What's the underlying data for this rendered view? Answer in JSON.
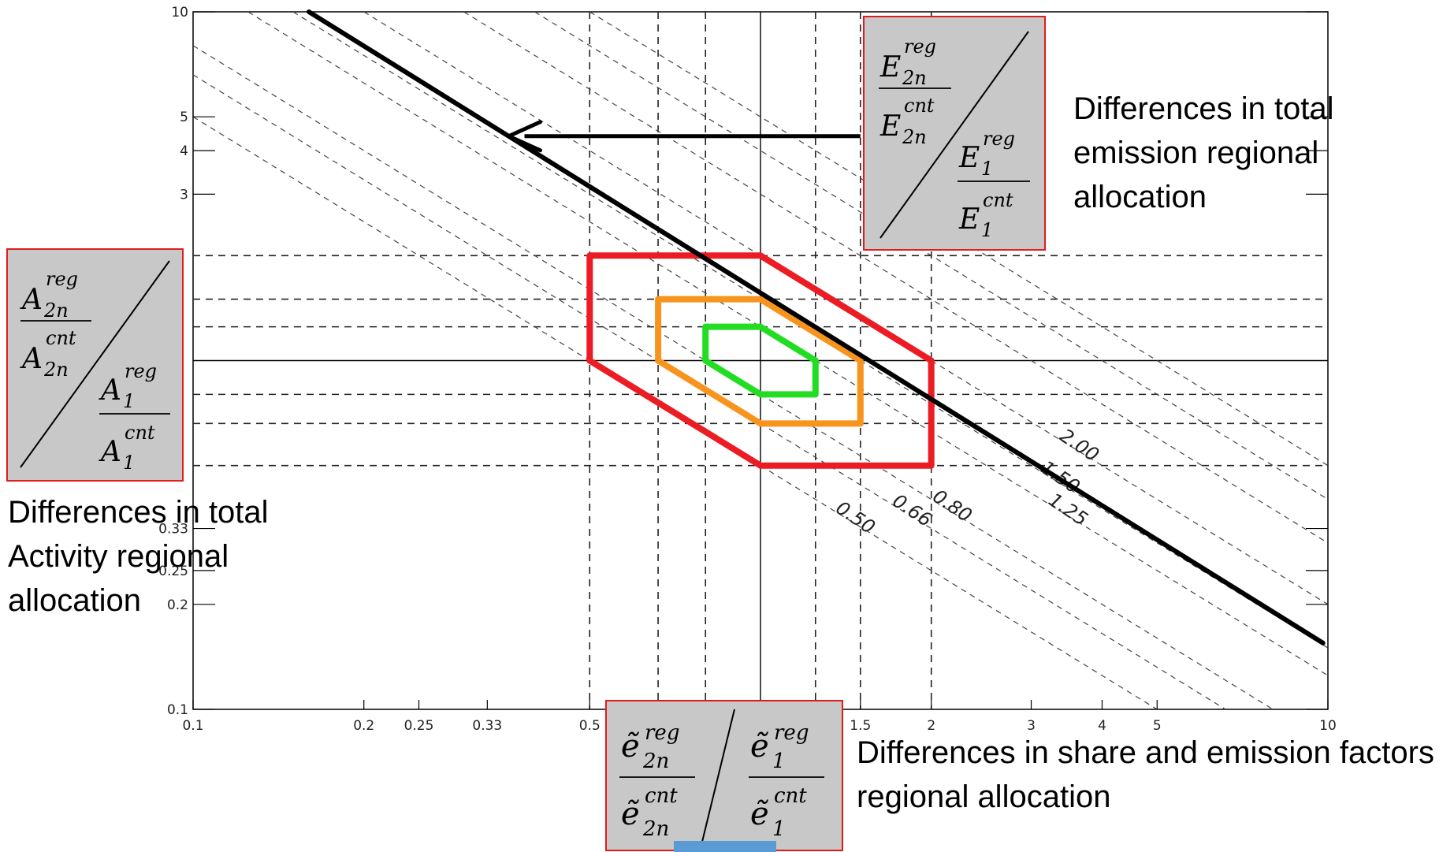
{
  "chart_data": {
    "type": "line",
    "xscale": "log",
    "yscale": "log",
    "xlim": [
      0.1,
      10
    ],
    "ylim": [
      0.1,
      10
    ],
    "x_ticks": [
      {
        "v": 0.1,
        "label": "0.1"
      },
      {
        "v": 0.2,
        "label": "0.2"
      },
      {
        "v": 0.25,
        "label": "0.25"
      },
      {
        "v": 0.33,
        "label": "0.33"
      },
      {
        "v": 0.5,
        "label": "0.5"
      },
      {
        "v": 1.5,
        "label": "1.5"
      },
      {
        "v": 2,
        "label": "2"
      },
      {
        "v": 3,
        "label": "3"
      },
      {
        "v": 4,
        "label": "4"
      },
      {
        "v": 5,
        "label": "5"
      },
      {
        "v": 10,
        "label": "10"
      }
    ],
    "y_ticks": [
      {
        "v": 10,
        "label": "10"
      },
      {
        "v": 5,
        "label": "5"
      },
      {
        "v": 4,
        "label": "4"
      },
      {
        "v": 3,
        "label": "3"
      },
      {
        "v": 0.33,
        "label": "0.33"
      },
      {
        "v": 0.25,
        "label": "0.25"
      },
      {
        "v": 0.2,
        "label": "0.2"
      },
      {
        "v": 0.1,
        "label": "0.1"
      }
    ],
    "dashed_vertical": [
      0.5,
      0.66,
      0.8,
      1.25,
      1.5,
      2.0
    ],
    "dashed_horizontal": [
      0.5,
      0.66,
      0.8,
      1.25,
      1.5,
      2.0
    ],
    "solid_reference": {
      "x": 1.0,
      "y": 1.0
    },
    "contours": [
      {
        "label": "2.00",
        "c": 2.0
      },
      {
        "label": "1.50",
        "c": 1.5
      },
      {
        "label": "1.25",
        "c": 1.25
      },
      {
        "label": "0.80",
        "c": 0.8
      },
      {
        "label": "0.66",
        "c": 0.66
      },
      {
        "label": "0.50",
        "c": 0.5
      }
    ],
    "extra_contours": [
      3.0,
      4.0,
      5.0
    ],
    "polygons": [
      {
        "color": "#ec1c24",
        "points": [
          [
            0.5,
            2.0
          ],
          [
            1.0,
            2.0
          ],
          [
            2.0,
            1.0
          ],
          [
            2.0,
            0.5
          ],
          [
            1.0,
            0.5
          ],
          [
            0.5,
            1.0
          ]
        ]
      },
      {
        "color": "#f7941d",
        "points": [
          [
            0.66,
            1.5
          ],
          [
            1.0,
            1.5
          ],
          [
            1.5,
            1.0
          ],
          [
            1.5,
            0.66
          ],
          [
            1.0,
            0.66
          ],
          [
            0.66,
            1.0
          ]
        ]
      },
      {
        "color": "#22dd22",
        "points": [
          [
            0.8,
            1.25
          ],
          [
            1.0,
            1.25
          ],
          [
            1.25,
            1.0
          ],
          [
            1.25,
            0.8
          ],
          [
            1.0,
            0.8
          ],
          [
            0.8,
            1.0
          ]
        ]
      }
    ],
    "thick_line": {
      "x": [
        0.16,
        9.8
      ],
      "y": [
        10.0,
        0.155
      ]
    },
    "arrow": {
      "from": [
        1.5,
        4.4
      ],
      "to": [
        0.36,
        4.4
      ]
    }
  },
  "annotations": {
    "total_emission": "Differences in total emission regional allocation",
    "total_activity": "Differences in total Activity regional allocation",
    "share_emission": "Differences in share and emission factors regional allocation"
  },
  "formulas": {
    "emission": {
      "top_base": "E",
      "top_sub": "2n",
      "top_sup": "reg",
      "bot_sup": "cnt",
      "low_base": "E",
      "low_sub": "1",
      "low_sup": "reg",
      "low_bot_sup": "cnt"
    },
    "activity": {
      "top_base": "A",
      "top_sub": "2n",
      "top_sup": "reg",
      "bot_sup": "cnt",
      "low_base": "A",
      "low_sub": "1",
      "low_sup": "reg",
      "low_bot_sup": "cnt"
    },
    "share": {
      "top_base": "ẽ",
      "top_sub": "2n",
      "top_sup": "reg",
      "bot_sup": "cnt",
      "low_base": "ẽ",
      "low_sub": "1",
      "low_sup": "reg",
      "low_bot_sup": "cnt"
    }
  },
  "colors": {
    "box_border": "#e21b1b",
    "box_fill": "#c8c8c8"
  }
}
